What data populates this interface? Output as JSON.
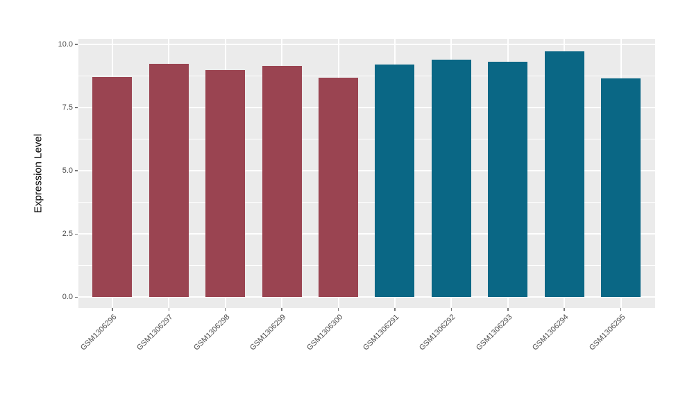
{
  "figure": {
    "background_color": "#FFFFFF",
    "panel_background_color": "#EBEBEB",
    "gridline_color": "#FFFFFF",
    "tick_mark_color": "#777777",
    "tick_label_color": "#4D4D4D",
    "axis_title_color": "#000000"
  },
  "chart_data": {
    "type": "bar",
    "title": "",
    "xlabel": "",
    "ylabel": "Expression Level",
    "categories": [
      "GSM1306296",
      "GSM1306297",
      "GSM1306298",
      "GSM1306299",
      "GSM1306300",
      "GSM1306291",
      "GSM1306292",
      "GSM1306293",
      "GSM1306294",
      "GSM1306295"
    ],
    "values": [
      8.7,
      9.22,
      8.99,
      9.16,
      8.67,
      9.21,
      9.38,
      9.31,
      9.73,
      8.65
    ],
    "bar_colors": [
      "#9A4451",
      "#9A4451",
      "#9A4451",
      "#9A4451",
      "#9A4451",
      "#0A6785",
      "#0A6785",
      "#0A6785",
      "#0A6785",
      "#0A6785"
    ],
    "group_colors": {
      "first_five": "#9A4451",
      "last_five": "#0A6785"
    },
    "ylim": [
      0,
      10
    ],
    "y_major_ticks": [
      {
        "label": "0.0",
        "value": 0
      },
      {
        "label": "2.5",
        "value": 2.5
      },
      {
        "label": "5.0",
        "value": 5
      },
      {
        "label": "7.5",
        "value": 7.5
      },
      {
        "label": "10.0",
        "value": 10
      }
    ],
    "y_minor_ticks": [
      1.25,
      3.75,
      6.25,
      8.75
    ],
    "bar_rel_width": 0.7,
    "grid": true,
    "legend_position": "none"
  }
}
